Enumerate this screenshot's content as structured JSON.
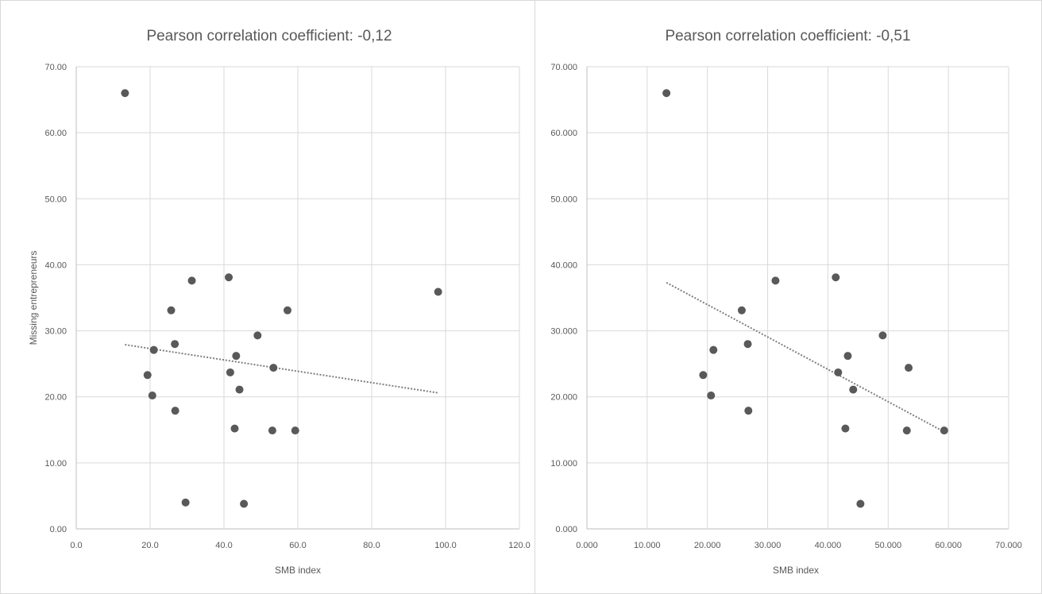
{
  "colors": {
    "marker": "#595959",
    "grid": "#d9d9d9",
    "text": "#595959",
    "trendline": "#7f7f7f"
  },
  "chart_data": [
    {
      "type": "scatter",
      "title": "Pearson correlation coefficient: -0,12",
      "xlabel": "SMB index",
      "ylabel": "Missing entrepreneurs",
      "xlim": [
        0,
        120
      ],
      "ylim": [
        0,
        70
      ],
      "x_ticks": [
        "0.0",
        "20.0",
        "40.0",
        "60.0",
        "80.0",
        "100.0",
        "120.0"
      ],
      "y_ticks": [
        "0.00",
        "10.00",
        "20.00",
        "30.00",
        "40.00",
        "50.00",
        "60.00",
        "70.00"
      ],
      "grid": true,
      "trendline": {
        "style": "dotted",
        "x": [
          13.2,
          98.0
        ],
        "y": [
          27.9,
          20.6
        ]
      },
      "points": [
        {
          "x": 13.2,
          "y": 66.0
        },
        {
          "x": 19.3,
          "y": 23.3
        },
        {
          "x": 20.6,
          "y": 20.2
        },
        {
          "x": 21.0,
          "y": 27.1
        },
        {
          "x": 25.7,
          "y": 33.1
        },
        {
          "x": 26.7,
          "y": 28.0
        },
        {
          "x": 26.8,
          "y": 17.9
        },
        {
          "x": 29.6,
          "y": 4.0
        },
        {
          "x": 31.3,
          "y": 37.6
        },
        {
          "x": 41.3,
          "y": 38.1
        },
        {
          "x": 41.7,
          "y": 23.7
        },
        {
          "x": 42.9,
          "y": 15.2
        },
        {
          "x": 43.3,
          "y": 26.2
        },
        {
          "x": 44.2,
          "y": 21.1
        },
        {
          "x": 45.4,
          "y": 3.8
        },
        {
          "x": 49.1,
          "y": 29.3
        },
        {
          "x": 53.1,
          "y": 14.9
        },
        {
          "x": 53.4,
          "y": 24.4
        },
        {
          "x": 57.2,
          "y": 33.1
        },
        {
          "x": 59.3,
          "y": 14.9
        },
        {
          "x": 98.0,
          "y": 35.9
        }
      ]
    },
    {
      "type": "scatter",
      "title": "Pearson correlation coefficient: -0,51",
      "xlabel": "SMB index",
      "ylabel": "",
      "xlim": [
        0,
        70
      ],
      "ylim": [
        0,
        70
      ],
      "x_ticks": [
        "0.000",
        "10.000",
        "20.000",
        "30.000",
        "40.000",
        "50.000",
        "60.000",
        "70.000"
      ],
      "y_ticks": [
        "0.000",
        "10.000",
        "20.000",
        "30.000",
        "40.000",
        "50.000",
        "60.000",
        "70.000"
      ],
      "grid": true,
      "trendline": {
        "style": "dotted",
        "x": [
          13.2,
          59.3
        ],
        "y": [
          37.3,
          14.7
        ]
      },
      "points": [
        {
          "x": 13.2,
          "y": 66.0
        },
        {
          "x": 19.3,
          "y": 23.3
        },
        {
          "x": 20.6,
          "y": 20.2
        },
        {
          "x": 21.0,
          "y": 27.1
        },
        {
          "x": 25.7,
          "y": 33.1
        },
        {
          "x": 26.7,
          "y": 28.0
        },
        {
          "x": 26.8,
          "y": 17.9
        },
        {
          "x": 31.3,
          "y": 37.6
        },
        {
          "x": 41.3,
          "y": 38.1
        },
        {
          "x": 41.7,
          "y": 23.7
        },
        {
          "x": 42.9,
          "y": 15.2
        },
        {
          "x": 43.3,
          "y": 26.2
        },
        {
          "x": 44.2,
          "y": 21.1
        },
        {
          "x": 45.4,
          "y": 3.8
        },
        {
          "x": 49.1,
          "y": 29.3
        },
        {
          "x": 53.1,
          "y": 14.9
        },
        {
          "x": 53.4,
          "y": 24.4
        },
        {
          "x": 59.3,
          "y": 14.9
        }
      ]
    }
  ]
}
